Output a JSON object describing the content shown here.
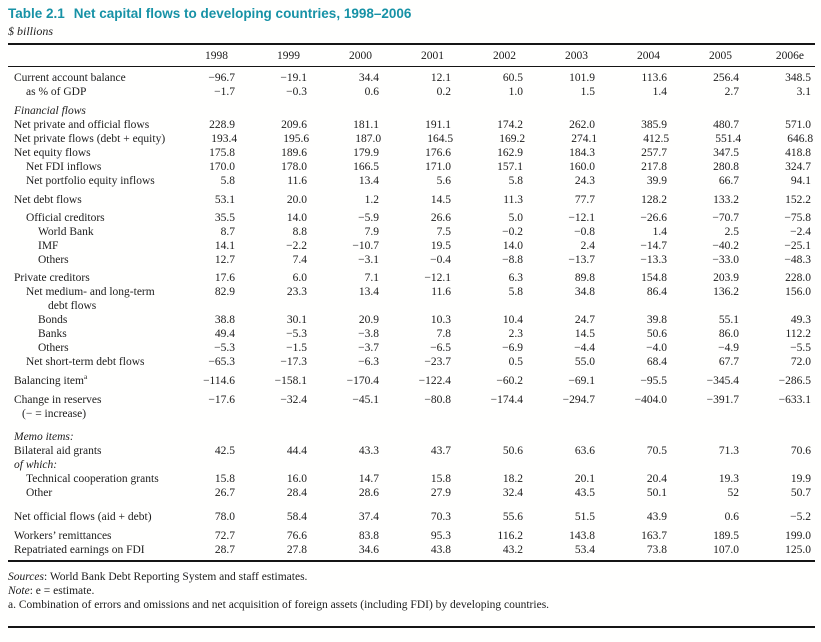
{
  "title": {
    "label": "Table 2.1",
    "text": "Net capital flows to developing countries, 1998–2006"
  },
  "subtitle": "$ billions",
  "colors": {
    "title_teal": "#1792a6",
    "text": "#1c1c1c"
  },
  "table": {
    "columns": [
      "1998",
      "1999",
      "2000",
      "2001",
      "2002",
      "2003",
      "2004",
      "2005",
      "2006e"
    ],
    "rows": [
      {
        "label": "Current account balance",
        "indent": 0,
        "gap": 0,
        "values": [
          "−96.7",
          "−19.1",
          "34.4",
          "12.1",
          "60.5",
          "101.9",
          "113.6",
          "256.4",
          "348.5"
        ]
      },
      {
        "label": "as % of GDP",
        "indent": 1,
        "gap": 0,
        "values": [
          "−1.7",
          "−0.3",
          "0.6",
          "0.2",
          "1.0",
          "1.5",
          "1.4",
          "2.7",
          "3.1"
        ]
      },
      {
        "label": "Financial flows",
        "indent": 0,
        "italic": true,
        "gap": 5,
        "values": []
      },
      {
        "label": "Net private and official flows",
        "indent": 0,
        "gap": 0,
        "values": [
          "228.9",
          "209.6",
          "181.1",
          "191.1",
          "174.2",
          "262.0",
          "385.9",
          "480.7",
          "571.0"
        ]
      },
      {
        "label": "Net private flows (debt + equity)",
        "indent": 0,
        "gap": 0,
        "values": [
          "193.4",
          "195.6",
          "187.0",
          "164.5",
          "169.2",
          "274.1",
          "412.5",
          "551.4",
          "646.8"
        ]
      },
      {
        "label": "Net equity flows",
        "indent": 0,
        "gap": 0,
        "values": [
          "175.8",
          "189.6",
          "179.9",
          "176.6",
          "162.9",
          "184.3",
          "257.7",
          "347.5",
          "418.8"
        ]
      },
      {
        "label": "Net FDI inflows",
        "indent": 1,
        "gap": 0,
        "values": [
          "170.0",
          "178.0",
          "166.5",
          "171.0",
          "157.1",
          "160.0",
          "217.8",
          "280.8",
          "324.7"
        ]
      },
      {
        "label": "Net portfolio equity inflows",
        "indent": 1,
        "gap": 0,
        "values": [
          "5.8",
          "11.6",
          "13.4",
          "5.6",
          "5.8",
          "24.3",
          "39.9",
          "66.7",
          "94.1"
        ]
      },
      {
        "label": "Net debt flows",
        "indent": 0,
        "gap": 5,
        "values": [
          "53.1",
          "20.0",
          "1.2",
          "14.5",
          "11.3",
          "77.7",
          "128.2",
          "133.2",
          "152.2"
        ]
      },
      {
        "label": "Official creditors",
        "indent": 1,
        "gap": 4,
        "values": [
          "35.5",
          "14.0",
          "−5.9",
          "26.6",
          "5.0",
          "−12.1",
          "−26.6",
          "−70.7",
          "−75.8"
        ]
      },
      {
        "label": "World Bank",
        "indent": 2,
        "gap": 0,
        "values": [
          "8.7",
          "8.8",
          "7.9",
          "7.5",
          "−0.2",
          "−0.8",
          "1.4",
          "2.5",
          "−2.4"
        ]
      },
      {
        "label": "IMF",
        "indent": 2,
        "gap": 0,
        "values": [
          "14.1",
          "−2.2",
          "−10.7",
          "19.5",
          "14.0",
          "2.4",
          "−14.7",
          "−40.2",
          "−25.1"
        ]
      },
      {
        "label": "Others",
        "indent": 2,
        "gap": 0,
        "values": [
          "12.7",
          "7.4",
          "−3.1",
          "−0.4",
          "−8.8",
          "−13.7",
          "−13.3",
          "−33.0",
          "−48.3"
        ]
      },
      {
        "label": "Private creditors",
        "indent": 0,
        "gap": 4,
        "values": [
          "17.6",
          "6.0",
          "7.1",
          "−12.1",
          "6.3",
          "89.8",
          "154.8",
          "203.9",
          "228.0"
        ]
      },
      {
        "label": "Net medium- and long-term",
        "label2": "debt flows",
        "cont_indent": 22,
        "indent": 1,
        "gap": 0,
        "values": [
          "82.9",
          "23.3",
          "13.4",
          "11.6",
          "5.8",
          "34.8",
          "86.4",
          "136.2",
          "156.0"
        ]
      },
      {
        "label": "Bonds",
        "indent": 2,
        "gap": 0,
        "values": [
          "38.8",
          "30.1",
          "20.9",
          "10.3",
          "10.4",
          "24.7",
          "39.8",
          "55.1",
          "49.3"
        ]
      },
      {
        "label": "Banks",
        "indent": 2,
        "gap": 0,
        "values": [
          "49.4",
          "−5.3",
          "−3.8",
          "7.8",
          "2.3",
          "14.5",
          "50.6",
          "86.0",
          "112.2"
        ]
      },
      {
        "label": "Others",
        "indent": 2,
        "gap": 0,
        "values": [
          "−5.3",
          "−1.5",
          "−3.7",
          "−6.5",
          "−6.9",
          "−4.4",
          "−4.0",
          "−4.9",
          "−5.5"
        ]
      },
      {
        "label": "Net short-term debt flows",
        "indent": 1,
        "gap": 0,
        "values": [
          "−65.3",
          "−17.3",
          "−6.3",
          "−23.7",
          "0.5",
          "55.0",
          "68.4",
          "67.7",
          "72.0"
        ]
      },
      {
        "label": "Balancing item",
        "sup": "a",
        "indent": 0,
        "gap": 5,
        "values": [
          "−114.6",
          "−158.1",
          "−170.4",
          "−122.4",
          "−60.2",
          "−69.1",
          "−95.5",
          "−345.4",
          "−286.5"
        ]
      },
      {
        "label": "Change in reserves",
        "label2": "(− = increase)",
        "cont_indent": 8,
        "indent": 0,
        "gap": 5,
        "values": [
          "−17.6",
          "−32.4",
          "−45.1",
          "−80.8",
          "−174.4",
          "−294.7",
          "−404.0",
          "−391.7",
          "−633.1"
        ]
      },
      {
        "label": "Memo items:",
        "indent": 0,
        "italic": true,
        "gap": 9,
        "values": []
      },
      {
        "label": "Bilateral aid grants",
        "indent": 0,
        "gap": 0,
        "values": [
          "42.5",
          "44.4",
          "43.3",
          "43.7",
          "50.6",
          "63.6",
          "70.5",
          "71.3",
          "70.6"
        ]
      },
      {
        "label": "of which:",
        "indent": 0,
        "italic": true,
        "gap": 0,
        "values": []
      },
      {
        "label": "Technical cooperation grants",
        "indent": 1,
        "gap": 0,
        "values": [
          "15.8",
          "16.0",
          "14.7",
          "15.8",
          "18.2",
          "20.1",
          "20.4",
          "19.3",
          "19.9"
        ]
      },
      {
        "label": "Other",
        "indent": 1,
        "gap": 0,
        "values": [
          "26.7",
          "28.4",
          "28.6",
          "27.9",
          "32.4",
          "43.5",
          "50.1",
          "52",
          "50.7"
        ]
      },
      {
        "label": "Net official flows (aid + debt)",
        "indent": 0,
        "gap": 10,
        "values": [
          "78.0",
          "58.4",
          "37.4",
          "70.3",
          "55.6",
          "51.5",
          "43.9",
          "0.6",
          "−5.2"
        ]
      },
      {
        "label": "Workers’ remittances",
        "indent": 0,
        "gap": 5,
        "values": [
          "72.7",
          "76.6",
          "83.8",
          "95.3",
          "116.2",
          "143.8",
          "163.7",
          "189.5",
          "199.0"
        ]
      },
      {
        "label": "Repatriated earnings on FDI",
        "indent": 0,
        "gap": 0,
        "values": [
          "28.7",
          "27.8",
          "34.6",
          "43.8",
          "43.2",
          "53.4",
          "73.8",
          "107.0",
          "125.0"
        ]
      }
    ]
  },
  "footnotes": {
    "sources_label": "Sources",
    "sources_text": ": World Bank Debt Reporting System and staff estimates.",
    "note_label": "Note",
    "note_text": ": e = estimate.",
    "footnote_a": "a. Combination of errors and omissions and net acquisition of foreign assets (including FDI) by developing countries."
  }
}
